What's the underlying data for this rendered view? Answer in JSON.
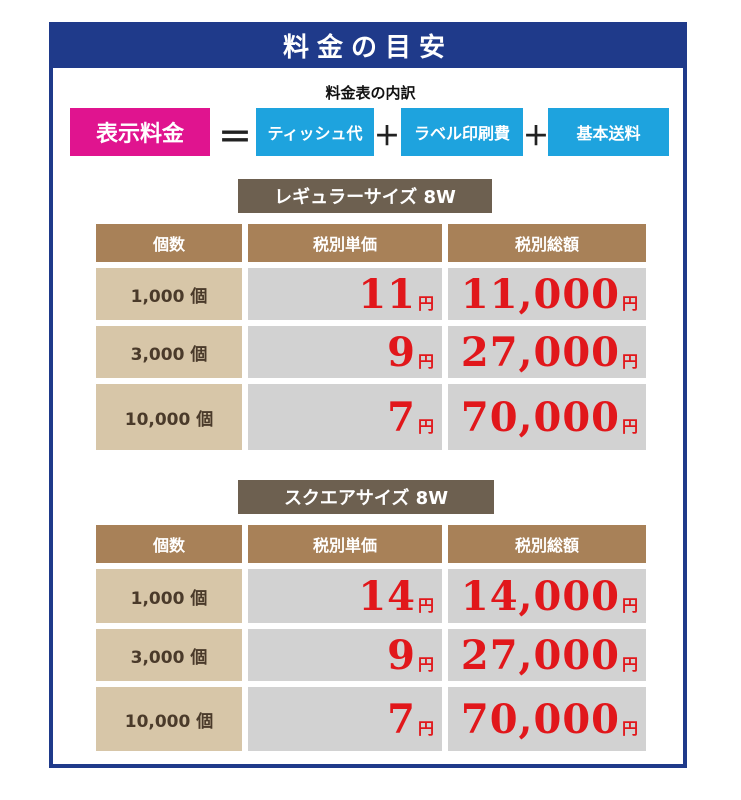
{
  "header": {
    "title": "料金の目安"
  },
  "breakdown": {
    "subtitle": "料金表の内訳",
    "display_price": "表示料金",
    "equals": "＝",
    "plus": "＋",
    "items": [
      "ティッシュ代",
      "ラベル印刷費",
      "基本送料"
    ]
  },
  "tables": [
    {
      "title": "レギュラーサイズ 8W",
      "columns": [
        "個数",
        "税別単価",
        "税別総額"
      ],
      "rows": [
        {
          "qty": "1,000 個",
          "unit_price": "11",
          "total": "11,000"
        },
        {
          "qty": "3,000 個",
          "unit_price": "9",
          "total": "27,000"
        },
        {
          "qty": "10,000 個",
          "unit_price": "7",
          "total": "70,000"
        }
      ]
    },
    {
      "title": "スクエアサイズ 8W",
      "columns": [
        "個数",
        "税別単価",
        "税別総額"
      ],
      "rows": [
        {
          "qty": "1,000 個",
          "unit_price": "14",
          "total": "14,000"
        },
        {
          "qty": "3,000 個",
          "unit_price": "9",
          "total": "27,000"
        },
        {
          "qty": "10,000 個",
          "unit_price": "7",
          "total": "70,000"
        }
      ]
    }
  ],
  "currency_unit": "円",
  "colors": {
    "frame": "#1f3a8a",
    "magenta": "#e0148f",
    "blue": "#1ea3de",
    "price_red": "#e1171b"
  }
}
